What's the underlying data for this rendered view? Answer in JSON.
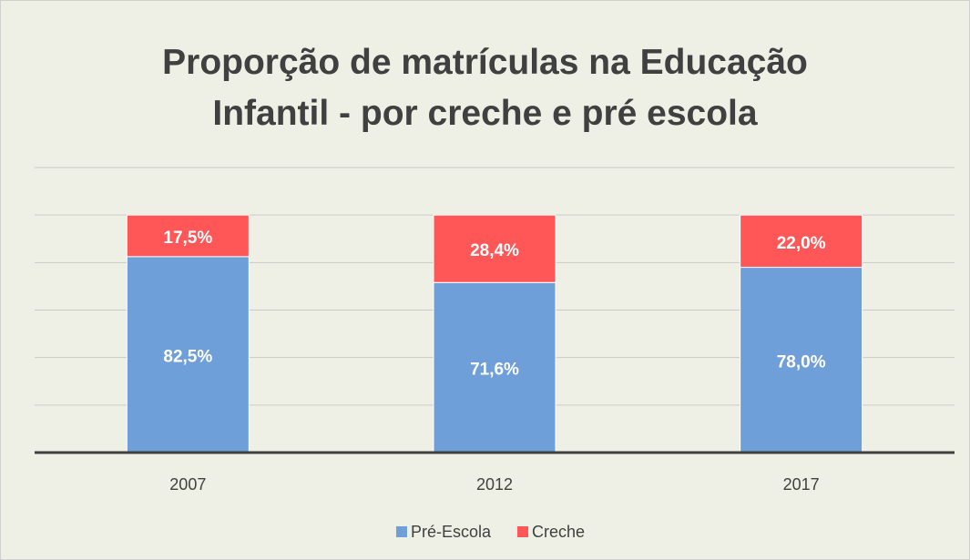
{
  "chart_data": {
    "type": "stacked_bar",
    "title": "Proporção de matrículas na Educação Infantil - por creche e pré escola",
    "categories": [
      "2007",
      "2012",
      "2017"
    ],
    "series": [
      {
        "name": "Pré-Escola",
        "color": "#6f9fd8",
        "values": [
          82.5,
          71.6,
          78.0
        ],
        "value_labels": [
          "82,5%",
          "71,6%",
          "78,0%"
        ]
      },
      {
        "name": "Creche",
        "color": "#ff5757",
        "values": [
          17.5,
          28.4,
          22.0
        ],
        "value_labels": [
          "17,5%",
          "28,4%",
          "22,0%"
        ]
      }
    ],
    "ylim": [
      0,
      120
    ],
    "yticks": [
      0,
      20,
      40,
      60,
      80,
      100,
      120
    ],
    "grid": true,
    "legend": "bottom"
  }
}
